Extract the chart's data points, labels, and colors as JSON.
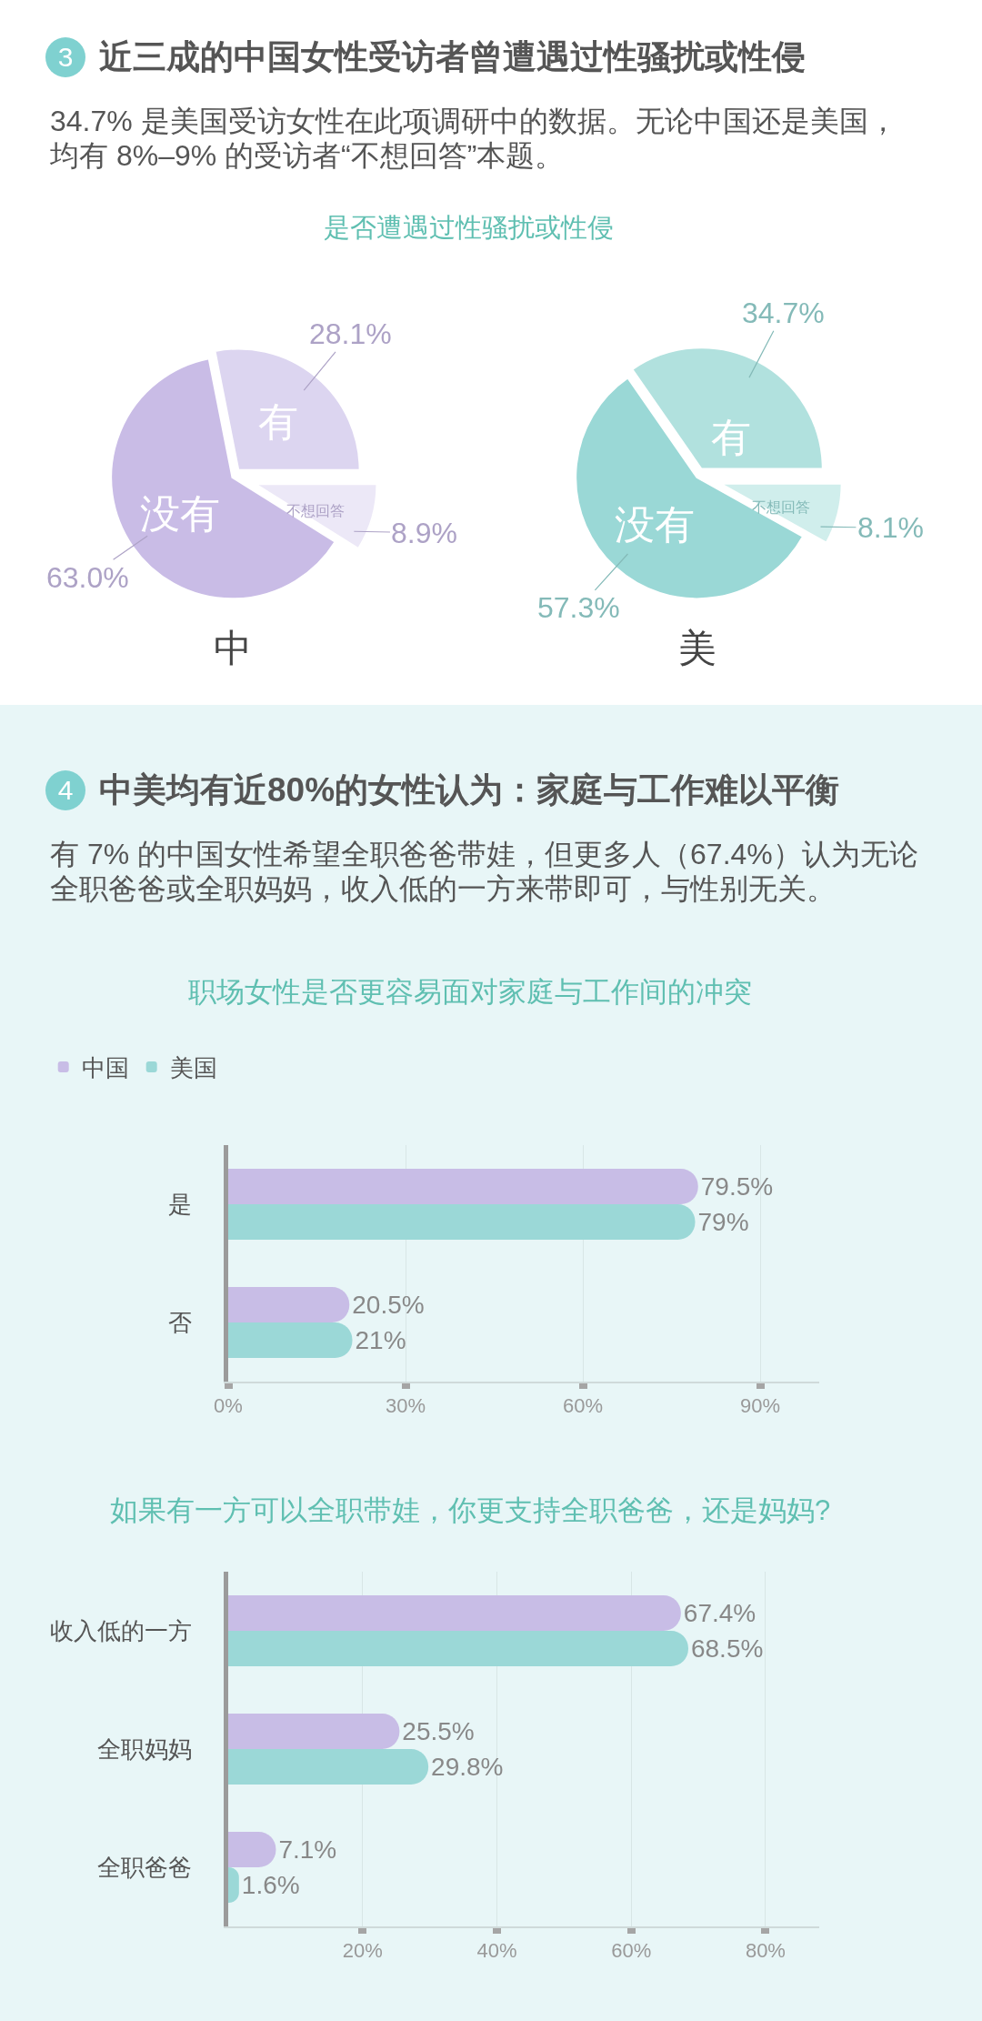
{
  "chart_data": [
    {
      "type": "other",
      "title": "近三成的中国女性受访者曾遭遇过性骚扰或性侵",
      "subtitle": "34.7% 是美国受访女性在此项调研中的数据。无论中国还是美国，均有 8%–9% 的受访者“不想回答”本题。",
      "annotations": [
        "3"
      ]
    },
    {
      "type": "pie",
      "title": "是否遭遇过性骚扰或性侵",
      "xlabel": "中",
      "categories": [
        "有",
        "不想回答",
        "没有"
      ],
      "values": [
        28.1,
        8.9,
        63.0
      ],
      "colors": [
        "#dcd5f0",
        "#ece8f7",
        "#c9bce6"
      ],
      "value_labels": [
        "28.1%",
        "8.9%",
        "63.0%"
      ]
    },
    {
      "type": "pie",
      "xlabel": "美",
      "categories": [
        "有",
        "不想回答",
        "没有"
      ],
      "values": [
        34.7,
        8.1,
        57.3
      ],
      "colors": [
        "#b1e1de",
        "#d0eeec",
        "#9ad8d6"
      ],
      "value_labels": [
        "34.7%",
        "8.1%",
        "57.3%"
      ]
    },
    {
      "type": "other",
      "title": "中美均有近80%的女性认为：家庭与工作难以平衡",
      "subtitle": "有 7% 的中国女性希望全职爸爸带娃，但更多人（67.4%）认为无论全职爸爸或全职妈妈，收入低的一方来带即可，与性别无关。",
      "annotations": [
        "4"
      ]
    },
    {
      "type": "bar",
      "orientation": "horizontal",
      "title": "职场女性是否更容易面对家庭与工作间的冲突",
      "categories": [
        "是",
        "否"
      ],
      "series": [
        {
          "name": "中国",
          "color": "#c8bde6",
          "values": [
            79.5,
            20.5
          ],
          "value_labels": [
            "79.5%",
            "20.5%"
          ]
        },
        {
          "name": "美国",
          "color": "#9bd8d7",
          "values": [
            79,
            21
          ],
          "value_labels": [
            "79%",
            "21%"
          ]
        }
      ],
      "xlim": [
        0,
        100
      ],
      "xticks": [
        {
          "value": 0,
          "label": "0%"
        },
        {
          "value": 30,
          "label": "30%"
        },
        {
          "value": 60,
          "label": "60%"
        },
        {
          "value": 90,
          "label": "90%"
        }
      ],
      "grid": "x",
      "legend": "top left"
    },
    {
      "type": "bar",
      "orientation": "horizontal",
      "title": "如果有一方可以全职带娃，你更支持全职爸爸，还是妈妈?",
      "categories": [
        "收入低的一方",
        "全职妈妈",
        "全职爸爸"
      ],
      "series": [
        {
          "color": "#c8bde6",
          "values": [
            67.4,
            25.5,
            7.1
          ],
          "value_labels": [
            "67.4%",
            "25.5%",
            "7.1%"
          ]
        },
        {
          "color": "#9bd8d7",
          "values": [
            68.5,
            29.8,
            1.6
          ],
          "value_labels": [
            "68.5%",
            "29.8%",
            "1.6%"
          ]
        }
      ],
      "xlim": [
        0,
        88
      ],
      "xticks": [
        {
          "value": 20,
          "label": "20%"
        },
        {
          "value": 40,
          "label": "40%"
        },
        {
          "value": 60,
          "label": "60%"
        },
        {
          "value": 80,
          "label": "80%"
        }
      ],
      "grid": "x"
    }
  ]
}
